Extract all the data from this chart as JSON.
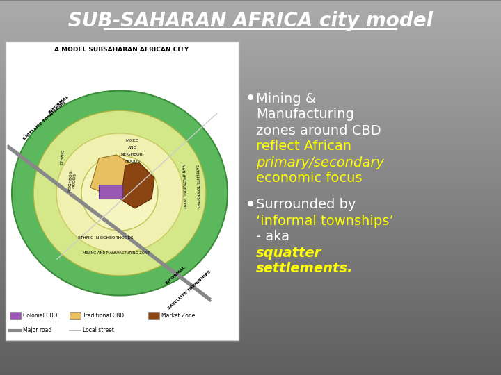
{
  "title": "SUB-SAHARAN AFRICA city model",
  "title_color": "#ffffff",
  "title_fontsize": 20,
  "map_title": "A MODEL SUBSAHARAN AFRICAN CITY",
  "text_color_white": "#ffffff",
  "text_color_yellow": "#ffff00",
  "bg_color_top": "#aaaaaa",
  "bg_color_bottom": "#606060",
  "map_box_color": "#ffffff",
  "zone_outer_color": "#5cb85c",
  "zone_mid2_color": "#d4e88a",
  "zone_mid1_color": "#f0f0b0",
  "zone_core_color": "#f5f5c0",
  "colonial_cbd_color": "#9b59b6",
  "traditional_cbd_color": "#e8c060",
  "market_zone_color": "#8b4513",
  "road_color_major": "#888888",
  "road_color_local": "#cccccc",
  "bullet1_line1": "Mining &",
  "bullet1_line2": "Manufacturing",
  "bullet1_line3": "zones around CBD",
  "bullet1_yellow1": "reflect African",
  "bullet1_yellow2": "primary/secondary",
  "bullet1_yellow3": "economic focus",
  "bullet2_line1": "Surrounded by",
  "bullet2_line2": "‘informal townships’",
  "bullet2_line3": "- aka ",
  "bullet2_yellow1": "squatter",
  "bullet2_yellow2": "settlements."
}
